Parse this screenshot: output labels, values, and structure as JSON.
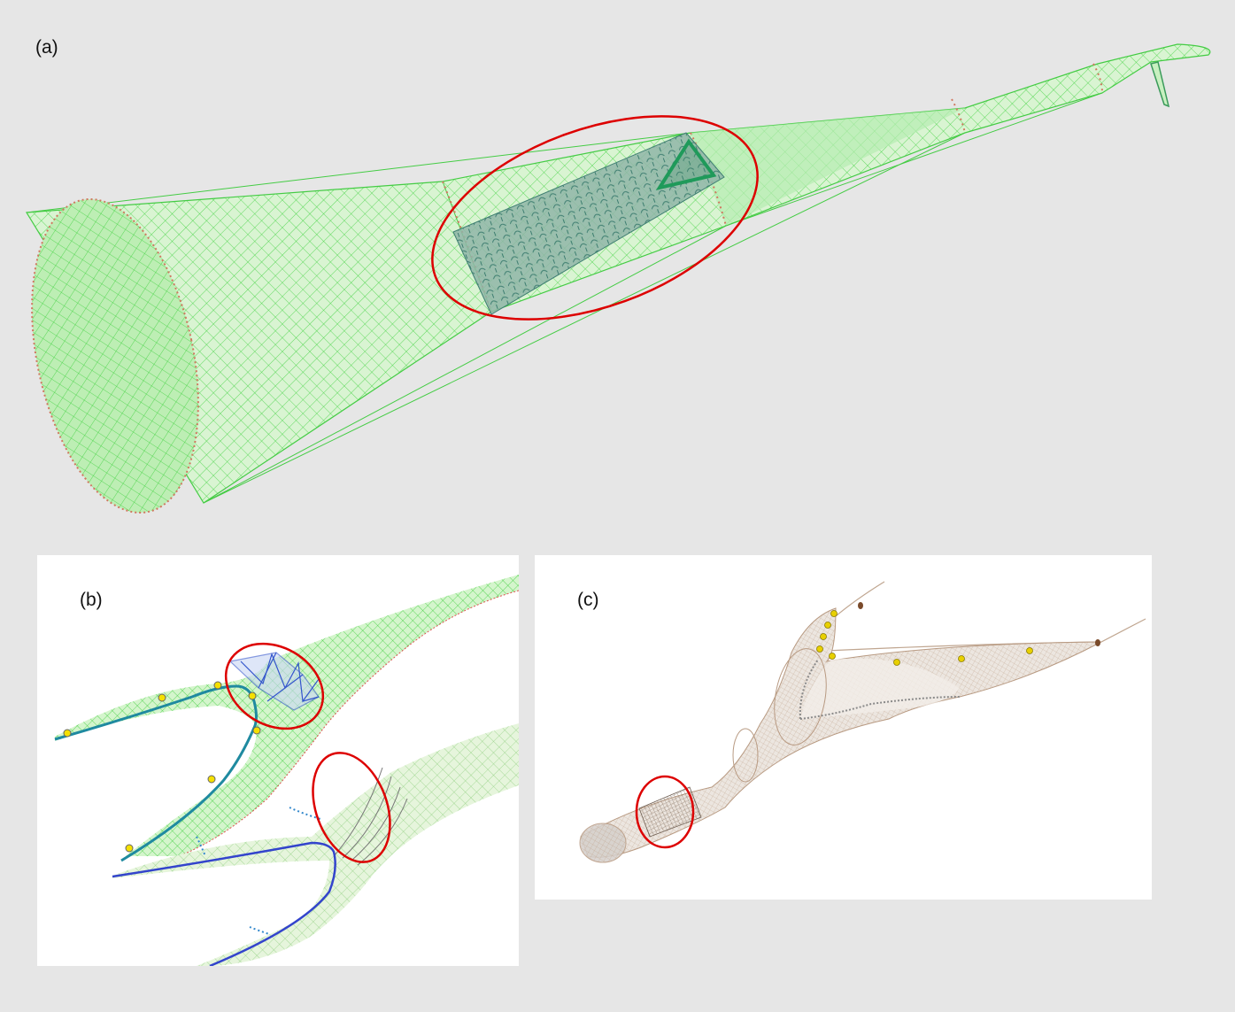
{
  "panels": [
    {
      "id": "a",
      "label": "(a)"
    },
    {
      "id": "b",
      "label": "(b)"
    },
    {
      "id": "c",
      "label": "(c)"
    }
  ],
  "colors": {
    "background": "#e6e6e6",
    "net_green": "#33cc33",
    "net_fill": "#c8f5c0",
    "highlight_red": "#dd0000",
    "seam_dots": "#d07860",
    "selected_panel": "#5f8f88",
    "rope_teal": "#1f8a94",
    "rope_blue": "#3344cc",
    "float_yellow": "#f5e000",
    "net_brown": "#b89a82",
    "weight_brown": "#7a4a2a"
  },
  "icons": {
    "highlight_marker": "ellipse-outline",
    "float_marker": "yellow-circle",
    "selection_marker": "triangle-outline"
  }
}
